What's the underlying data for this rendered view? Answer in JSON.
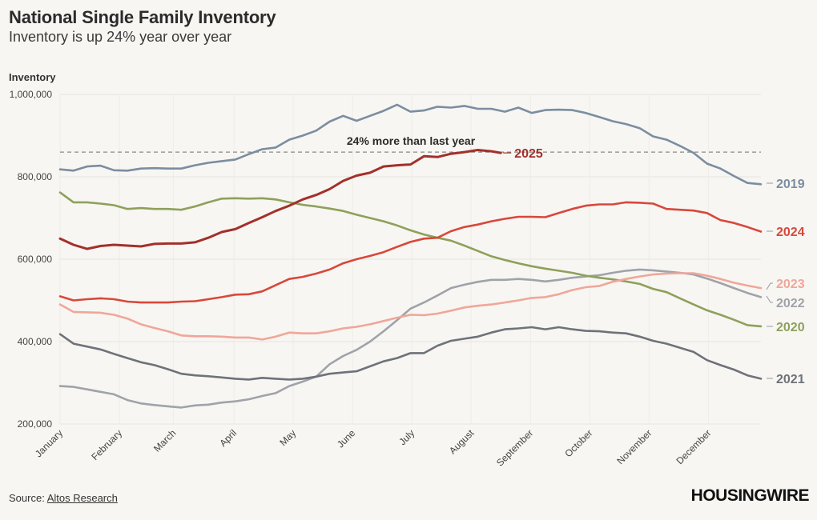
{
  "header": {
    "title": "National Single Family Inventory",
    "subtitle": "Inventory is up 24% year over year"
  },
  "footer": {
    "source_label": "Source:",
    "source_link": "Altos Research",
    "brand": "HOUSINGWIRE"
  },
  "colors": {
    "background": "#f7f6f2",
    "grid": "#e6e4de",
    "s2019": "#7b8da0",
    "s2020": "#8ea05b",
    "s2021": "#6e7279",
    "s2022": "#9fa3a9",
    "s2023": "#f0a69a",
    "s2024": "#d9473b",
    "s2025": "#a3302b"
  },
  "chart_data": {
    "type": "line",
    "title": "National Single Family Inventory",
    "subtitle": "Inventory is up 24% year over year",
    "ylabel": "Inventory",
    "xlabel": "",
    "ylim": [
      200000,
      1000000
    ],
    "yticks": [
      200000,
      400000,
      600000,
      800000,
      1000000
    ],
    "ytick_labels": [
      "200,000",
      "400,000",
      "600,000",
      "800,000",
      "1,000,000"
    ],
    "x_unit": "week of year (0-52)",
    "xlim": [
      0,
      52
    ],
    "month_ticks": [
      {
        "label": "January",
        "x": 0
      },
      {
        "label": "February",
        "x": 4.4
      },
      {
        "label": "March",
        "x": 8.4
      },
      {
        "label": "April",
        "x": 12.9
      },
      {
        "label": "May",
        "x": 17.3
      },
      {
        "label": "June",
        "x": 21.7
      },
      {
        "label": "July",
        "x": 26.1
      },
      {
        "label": "August",
        "x": 30.5
      },
      {
        "label": "September",
        "x": 34.9
      },
      {
        "label": "October",
        "x": 39.3
      },
      {
        "label": "November",
        "x": 43.7
      },
      {
        "label": "December",
        "x": 48.1
      }
    ],
    "reference_line": {
      "value": 860000,
      "label": "24% more than last year"
    },
    "series": [
      {
        "name": "2019",
        "color_key": "s2019",
        "x": [
          0,
          1,
          2,
          3,
          4,
          5,
          6,
          7,
          8,
          9,
          10,
          11,
          12,
          13,
          14,
          15,
          16,
          17,
          18,
          19,
          20,
          21,
          22,
          23,
          24,
          25,
          26,
          27,
          28,
          29,
          30,
          31,
          32,
          33,
          34,
          35,
          36,
          37,
          38,
          39,
          40,
          41,
          42,
          43,
          44,
          45,
          46,
          47,
          48,
          49,
          50,
          51,
          52
        ],
        "values": [
          818000,
          815000,
          825000,
          827000,
          816000,
          815000,
          820000,
          821000,
          820000,
          820000,
          828000,
          834000,
          838000,
          842000,
          855000,
          867000,
          871000,
          890000,
          900000,
          912000,
          934000,
          948000,
          936000,
          948000,
          960000,
          975000,
          958000,
          961000,
          970000,
          968000,
          972000,
          965000,
          965000,
          958000,
          968000,
          955000,
          962000,
          963000,
          962000,
          955000,
          945000,
          935000,
          928000,
          918000,
          898000,
          890000,
          875000,
          858000,
          832000,
          820000,
          802000,
          785000,
          782000
        ]
      },
      {
        "name": "2020",
        "color_key": "s2020",
        "x": [
          0,
          1,
          2,
          3,
          4,
          5,
          6,
          7,
          8,
          9,
          10,
          11,
          12,
          13,
          14,
          15,
          16,
          17,
          18,
          19,
          20,
          21,
          22,
          23,
          24,
          25,
          26,
          27,
          28,
          29,
          30,
          31,
          32,
          33,
          34,
          35,
          36,
          37,
          38,
          39,
          40,
          41,
          42,
          43,
          44,
          45,
          46,
          47,
          48,
          49,
          50,
          51,
          52
        ],
        "values": [
          762000,
          738000,
          738000,
          735000,
          731000,
          722000,
          724000,
          722000,
          722000,
          720000,
          728000,
          738000,
          747000,
          748000,
          747000,
          748000,
          745000,
          738000,
          732000,
          728000,
          723000,
          717000,
          708000,
          700000,
          692000,
          682000,
          670000,
          660000,
          652000,
          645000,
          633000,
          620000,
          607000,
          598000,
          590000,
          583000,
          577000,
          572000,
          567000,
          560000,
          555000,
          551000,
          546000,
          540000,
          528000,
          520000,
          505000,
          490000,
          476000,
          465000,
          453000,
          440000,
          437000
        ]
      },
      {
        "name": "2021",
        "color_key": "s2021",
        "x": [
          0,
          1,
          2,
          3,
          4,
          5,
          6,
          7,
          8,
          9,
          10,
          11,
          12,
          13,
          14,
          15,
          16,
          17,
          18,
          19,
          20,
          21,
          22,
          23,
          24,
          25,
          26,
          27,
          28,
          29,
          30,
          31,
          32,
          33,
          34,
          35,
          36,
          37,
          38,
          39,
          40,
          41,
          42,
          43,
          44,
          45,
          46,
          47,
          48,
          49,
          50,
          51,
          52
        ],
        "values": [
          418000,
          395000,
          388000,
          381000,
          370000,
          360000,
          350000,
          343000,
          333000,
          322000,
          318000,
          316000,
          313000,
          310000,
          308000,
          312000,
          310000,
          308000,
          310000,
          315000,
          322000,
          325000,
          328000,
          340000,
          352000,
          360000,
          372000,
          372000,
          390000,
          402000,
          407000,
          412000,
          422000,
          430000,
          432000,
          435000,
          430000,
          435000,
          430000,
          426000,
          425000,
          422000,
          420000,
          412000,
          402000,
          395000,
          385000,
          375000,
          355000,
          343000,
          332000,
          318000,
          310000
        ]
      },
      {
        "name": "2022",
        "color_key": "s2022",
        "x": [
          0,
          1,
          2,
          3,
          4,
          5,
          6,
          7,
          8,
          9,
          10,
          11,
          12,
          13,
          14,
          15,
          16,
          17,
          18,
          19,
          20,
          21,
          22,
          23,
          24,
          25,
          26,
          27,
          28,
          29,
          30,
          31,
          32,
          33,
          34,
          35,
          36,
          37,
          38,
          39,
          40,
          41,
          42,
          43,
          44,
          45,
          46,
          47,
          48,
          49,
          50,
          51,
          52
        ],
        "values": [
          292000,
          290000,
          284000,
          278000,
          272000,
          258000,
          250000,
          246000,
          243000,
          240000,
          245000,
          247000,
          252000,
          255000,
          260000,
          268000,
          275000,
          292000,
          303000,
          315000,
          345000,
          365000,
          380000,
          400000,
          425000,
          452000,
          480000,
          495000,
          512000,
          530000,
          538000,
          545000,
          550000,
          550000,
          552000,
          550000,
          546000,
          550000,
          555000,
          558000,
          561000,
          567000,
          572000,
          575000,
          573000,
          570000,
          567000,
          563000,
          553000,
          542000,
          530000,
          518000,
          508000
        ]
      },
      {
        "name": "2023",
        "color_key": "s2023",
        "x": [
          0,
          1,
          2,
          3,
          4,
          5,
          6,
          7,
          8,
          9,
          10,
          11,
          12,
          13,
          14,
          15,
          16,
          17,
          18,
          19,
          20,
          21,
          22,
          23,
          24,
          25,
          26,
          27,
          28,
          29,
          30,
          31,
          32,
          33,
          34,
          35,
          36,
          37,
          38,
          39,
          40,
          41,
          42,
          43,
          44,
          45,
          46,
          47,
          48,
          49,
          50,
          51,
          52
        ],
        "values": [
          490000,
          472000,
          471000,
          470000,
          465000,
          456000,
          442000,
          433000,
          425000,
          415000,
          413000,
          413000,
          412000,
          410000,
          410000,
          405000,
          412000,
          422000,
          420000,
          420000,
          425000,
          432000,
          436000,
          442000,
          450000,
          458000,
          465000,
          464000,
          468000,
          475000,
          483000,
          487000,
          490000,
          495000,
          500000,
          506000,
          508000,
          515000,
          525000,
          532000,
          535000,
          545000,
          552000,
          558000,
          563000,
          565000,
          566000,
          566000,
          560000,
          552000,
          543000,
          536000,
          530000
        ]
      },
      {
        "name": "2024",
        "color_key": "s2024",
        "x": [
          0,
          1,
          2,
          3,
          4,
          5,
          6,
          7,
          8,
          9,
          10,
          11,
          12,
          13,
          14,
          15,
          16,
          17,
          18,
          19,
          20,
          21,
          22,
          23,
          24,
          25,
          26,
          27,
          28,
          29,
          30,
          31,
          32,
          33,
          34,
          35,
          36,
          37,
          38,
          39,
          40,
          41,
          42,
          43,
          44,
          45,
          46,
          47,
          48,
          49,
          50,
          51,
          52
        ],
        "values": [
          510000,
          500000,
          503000,
          505000,
          503000,
          497000,
          495000,
          495000,
          495000,
          497000,
          498000,
          503000,
          508000,
          514000,
          515000,
          522000,
          537000,
          552000,
          557000,
          565000,
          575000,
          590000,
          600000,
          608000,
          617000,
          630000,
          642000,
          650000,
          652000,
          668000,
          678000,
          684000,
          692000,
          698000,
          703000,
          703000,
          702000,
          712000,
          722000,
          730000,
          733000,
          733000,
          738000,
          737000,
          735000,
          722000,
          720000,
          718000,
          712000,
          695000,
          688000,
          678000,
          667000
        ]
      },
      {
        "name": "2025",
        "color_key": "s2025",
        "x": [
          0,
          1,
          2,
          3,
          4,
          5,
          6,
          7,
          8,
          9,
          10,
          11,
          12,
          13,
          14,
          15,
          16,
          17,
          18,
          19,
          20,
          21,
          22,
          23,
          24,
          25,
          26,
          27,
          28,
          29,
          30,
          31,
          32,
          32.7
        ],
        "values": [
          650000,
          635000,
          625000,
          632000,
          635000,
          633000,
          631000,
          637000,
          638000,
          638000,
          641000,
          652000,
          666000,
          673000,
          688000,
          702000,
          717000,
          730000,
          745000,
          756000,
          770000,
          790000,
          803000,
          810000,
          825000,
          828000,
          830000,
          850000,
          848000,
          856000,
          860000,
          865000,
          862000,
          858000
        ]
      }
    ]
  }
}
